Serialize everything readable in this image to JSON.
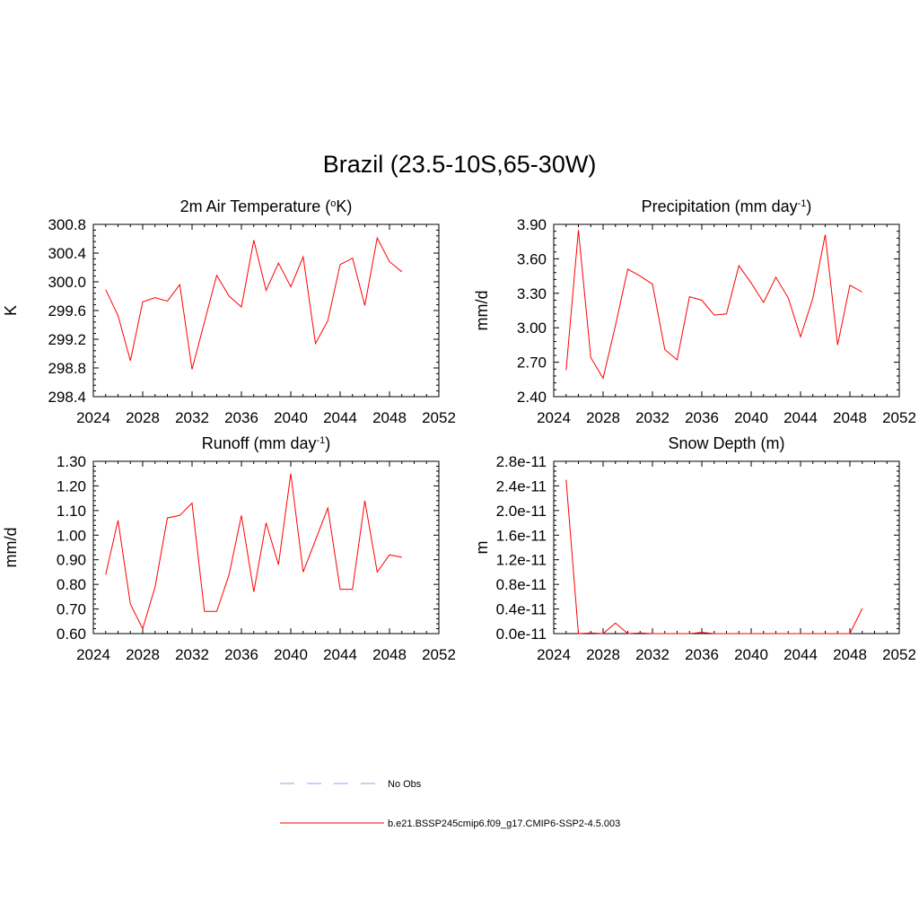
{
  "figure_title": "Brazil (23.5-10S,65-30W)",
  "chart_data": [
    {
      "type": "line",
      "title": "2m Air Temperature (°K)",
      "title_base": "2m Air Temperature (",
      "title_sup": "o",
      "title_suffix": "K)",
      "ylabel": "K",
      "xlim": [
        2024,
        2052
      ],
      "ylim": [
        298.4,
        300.8
      ],
      "xticks": [
        2024,
        2028,
        2032,
        2036,
        2040,
        2044,
        2048,
        2052
      ],
      "xtick_labels": [
        "2024",
        "2028",
        "2032",
        "2036",
        "2040",
        "2044",
        "2048",
        "2052"
      ],
      "yticks": [
        298.4,
        298.8,
        299.2,
        299.6,
        300.0,
        300.4,
        300.8
      ],
      "ytick_labels": [
        "298.4",
        "298.8",
        "299.2",
        "299.6",
        "300.0",
        "300.4",
        "300.8"
      ],
      "x": [
        2025,
        2026,
        2027,
        2028,
        2029,
        2030,
        2031,
        2032,
        2033,
        2034,
        2035,
        2036,
        2037,
        2038,
        2039,
        2040,
        2041,
        2042,
        2043,
        2044,
        2045,
        2046,
        2047,
        2048,
        2049
      ],
      "series": [
        {
          "name": "b.e21.BSSP245cmip6.f09_g17.CMIP6-SSP2-4.5.003",
          "color": "#ff0000",
          "values": [
            299.89,
            299.53,
            298.9,
            299.72,
            299.78,
            299.73,
            299.96,
            298.78,
            299.44,
            300.09,
            299.8,
            299.65,
            300.58,
            299.88,
            300.26,
            299.93,
            300.35,
            299.14,
            299.46,
            300.24,
            300.33,
            299.67,
            300.61,
            300.28,
            300.14
          ]
        }
      ]
    },
    {
      "type": "line",
      "title": "Precipitation (mm day-1)",
      "title_base": "Precipitation (mm day",
      "title_sup": "-1",
      "title_suffix": ")",
      "ylabel": "mm/d",
      "xlim": [
        2024,
        2052
      ],
      "ylim": [
        2.4,
        3.9
      ],
      "xticks": [
        2024,
        2028,
        2032,
        2036,
        2040,
        2044,
        2048,
        2052
      ],
      "xtick_labels": [
        "2024",
        "2028",
        "2032",
        "2036",
        "2040",
        "2044",
        "2048",
        "2052"
      ],
      "yticks": [
        2.4,
        2.7,
        3.0,
        3.3,
        3.6,
        3.9
      ],
      "ytick_labels": [
        "2.40",
        "2.70",
        "3.00",
        "3.30",
        "3.60",
        "3.90"
      ],
      "x": [
        2025,
        2026,
        2027,
        2028,
        2029,
        2030,
        2031,
        2032,
        2033,
        2034,
        2035,
        2036,
        2037,
        2038,
        2039,
        2040,
        2041,
        2042,
        2043,
        2044,
        2045,
        2046,
        2047,
        2048,
        2049
      ],
      "series": [
        {
          "name": "b.e21.BSSP245cmip6.f09_g17.CMIP6-SSP2-4.5.003",
          "color": "#ff0000",
          "values": [
            2.63,
            3.85,
            2.74,
            2.56,
            3.02,
            3.51,
            3.45,
            3.38,
            2.81,
            2.72,
            3.27,
            3.24,
            3.11,
            3.12,
            3.54,
            3.39,
            3.22,
            3.44,
            3.26,
            2.92,
            3.26,
            3.81,
            2.85,
            3.37,
            3.31
          ]
        }
      ]
    },
    {
      "type": "line",
      "title": "Runoff (mm day-1)",
      "title_base": "Runoff (mm day",
      "title_sup": "-1",
      "title_suffix": ")",
      "ylabel": "mm/d",
      "xlim": [
        2024,
        2052
      ],
      "ylim": [
        0.6,
        1.3
      ],
      "xticks": [
        2024,
        2028,
        2032,
        2036,
        2040,
        2044,
        2048,
        2052
      ],
      "xtick_labels": [
        "2024",
        "2028",
        "2032",
        "2036",
        "2040",
        "2044",
        "2048",
        "2052"
      ],
      "yticks": [
        0.6,
        0.7,
        0.8,
        0.9,
        1.0,
        1.1,
        1.2,
        1.3
      ],
      "ytick_labels": [
        "0.60",
        "0.70",
        "0.80",
        "0.90",
        "1.00",
        "1.10",
        "1.20",
        "1.30"
      ],
      "x": [
        2025,
        2026,
        2027,
        2028,
        2029,
        2030,
        2031,
        2032,
        2033,
        2034,
        2035,
        2036,
        2037,
        2038,
        2039,
        2040,
        2041,
        2042,
        2043,
        2044,
        2045,
        2046,
        2047,
        2048,
        2049
      ],
      "series": [
        {
          "name": "b.e21.BSSP245cmip6.f09_g17.CMIP6-SSP2-4.5.003",
          "color": "#ff0000",
          "values": [
            0.84,
            1.06,
            0.72,
            0.62,
            0.79,
            1.07,
            1.08,
            1.13,
            0.69,
            0.69,
            0.84,
            1.08,
            0.77,
            1.05,
            0.88,
            1.25,
            0.85,
            0.98,
            1.11,
            0.78,
            0.78,
            1.14,
            0.85,
            0.92,
            0.91
          ]
        }
      ]
    },
    {
      "type": "line",
      "title": "Snow Depth (m)",
      "title_base": "Snow Depth (m)",
      "title_sup": "",
      "title_suffix": "",
      "ylabel": "m",
      "xlim": [
        2024,
        2052
      ],
      "ylim": [
        0.0,
        2.8
      ],
      "y_unit_note": "values in units of 1e-11 m",
      "xticks": [
        2024,
        2028,
        2032,
        2036,
        2040,
        2044,
        2048,
        2052
      ],
      "xtick_labels": [
        "2024",
        "2028",
        "2032",
        "2036",
        "2040",
        "2044",
        "2048",
        "2052"
      ],
      "yticks": [
        0.0,
        0.4,
        0.8,
        1.2,
        1.6,
        2.0,
        2.4,
        2.8
      ],
      "ytick_labels": [
        "0.0e-11",
        "0.4e-11",
        "0.8e-11",
        "1.2e-11",
        "1.6e-11",
        "2.0e-11",
        "2.4e-11",
        "2.8e-11"
      ],
      "x": [
        2025,
        2026,
        2027,
        2028,
        2029,
        2030,
        2031,
        2032,
        2033,
        2034,
        2035,
        2036,
        2037,
        2038,
        2039,
        2040,
        2041,
        2042,
        2043,
        2044,
        2045,
        2046,
        2047,
        2048,
        2049
      ],
      "series": [
        {
          "name": "b.e21.BSSP245cmip6.f09_g17.CMIP6-SSP2-4.5.003",
          "color": "#ff0000",
          "values": [
            2.5,
            0.0,
            0.01,
            0.0,
            0.17,
            0.0,
            0.01,
            0.0,
            0.0,
            0.0,
            0.0,
            0.02,
            0.0,
            0.0,
            0.0,
            0.0,
            0.0,
            0.0,
            0.0,
            0.0,
            0.0,
            0.0,
            0.0,
            0.0,
            0.41
          ]
        }
      ]
    }
  ],
  "legend": {
    "items": [
      {
        "label": "No Obs",
        "style": "dashed",
        "color": "#9999ff"
      },
      {
        "label": "b.e21.BSSP245cmip6.f09_g17.CMIP6-SSP2-4.5.003",
        "style": "solid",
        "color": "#ff0000"
      }
    ]
  }
}
